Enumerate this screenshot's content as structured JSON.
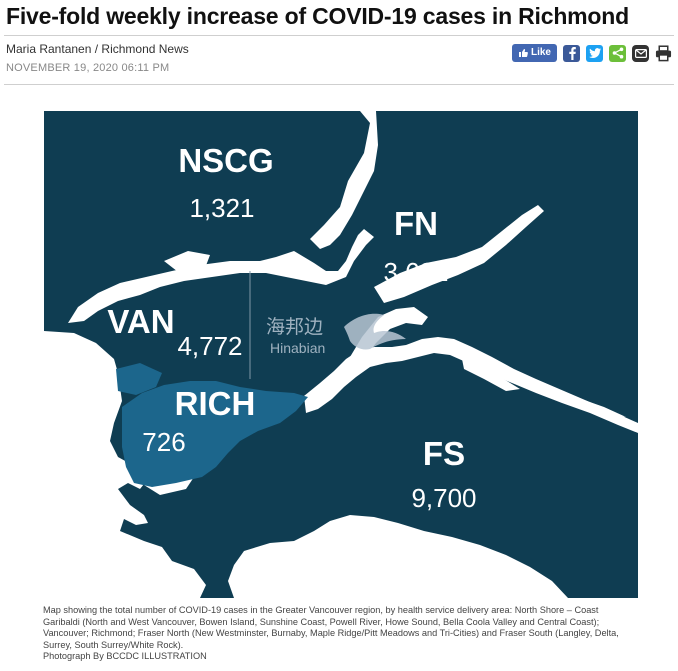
{
  "article": {
    "headline": "Five-fold weekly increase of COVID-19 cases in Richmond",
    "author": "Maria Rantanen",
    "byline_separator": " / ",
    "outlet": "Richmond News",
    "date": "NOVEMBER 19, 2020 06:11 PM"
  },
  "share": {
    "like_label": "Like",
    "icons": [
      "facebook-icon",
      "twitter-icon",
      "share-icon",
      "email-icon",
      "print-icon"
    ]
  },
  "map": {
    "colors": {
      "region": "#0f3d52",
      "richmond": "#1c668c",
      "water": "#ffffff"
    },
    "regions": [
      {
        "id": "nscg",
        "name": "NSCG",
        "count": "1,321"
      },
      {
        "id": "fn",
        "name": "FN",
        "count": "3,632"
      },
      {
        "id": "van",
        "name": "VAN",
        "count": "4,772"
      },
      {
        "id": "rich",
        "name": "RICH",
        "count": "726"
      },
      {
        "id": "fs",
        "name": "FS",
        "count": "9,700"
      }
    ],
    "watermark": {
      "chinese": "海邦边",
      "english": "Hinabian"
    }
  },
  "caption": {
    "text": "Map showing the total number of COVID-19 cases in the Greater Vancouver region, by health service delivery area: North Shore – Coast Garibaldi (North and West Vancouver, Bowen Island, Sunshine Coast, Powell River, Howe Sound, Bella Coola Valley and Central Coast); Vancouver; Richmond; Fraser North (New Westminster, Burnaby, Maple Ridge/Pitt Meadows and Tri-Cities) and Fraser South (Langley, Delta, Surrey, South Surrey/White Rock).",
    "credit": "Photograph By BCCDC ILLUSTRATION"
  }
}
